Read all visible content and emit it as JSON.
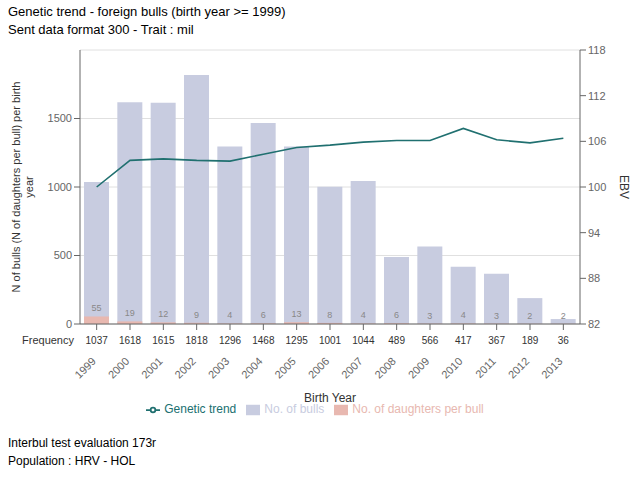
{
  "chart_data": {
    "type": "bar",
    "title": "Genetic trend - foreign bulls (birth year >= 1999)",
    "subtitle": "Sent data format 300 - Trait : mil",
    "annotations": [
      "Interbul test evaluation 173r",
      "Population : HRV - HOL"
    ],
    "categories": [
      "1999",
      "2000",
      "2001",
      "2002",
      "2003",
      "2004",
      "2005",
      "2006",
      "2007",
      "2008",
      "2009",
      "2010",
      "2011",
      "2012",
      "2013"
    ],
    "series": [
      {
        "name": "No. of bulls",
        "type": "bar",
        "color": "#c8cce0",
        "values": [
          1037,
          1618,
          1615,
          1818,
          1296,
          1468,
          1295,
          1001,
          1044,
          489,
          566,
          417,
          367,
          189,
          36
        ]
      },
      {
        "name": "No. of daughters per bull",
        "type": "bar",
        "color": "#e8b8b0",
        "data_labels": true,
        "values": [
          55,
          19,
          12,
          9,
          4,
          6,
          13,
          8,
          4,
          6,
          3,
          4,
          3,
          2,
          2
        ]
      },
      {
        "name": "Genetic trend",
        "type": "line",
        "axis": "y2",
        "color": "#207070",
        "values": [
          100.0,
          103.5,
          103.7,
          103.5,
          103.4,
          104.3,
          105.2,
          105.5,
          105.9,
          106.1,
          106.1,
          107.7,
          106.2,
          105.8,
          106.4
        ]
      }
    ],
    "frequency": {
      "label": "Frequency",
      "values": [
        1037,
        1618,
        1615,
        1818,
        1296,
        1468,
        1295,
        1001,
        1044,
        489,
        566,
        417,
        367,
        189,
        36
      ]
    },
    "xlabel": "Birth Year",
    "ylabel": "N of bulls (N of daughters per bull) per birth\nyear",
    "y2label": "EBV",
    "ylim": [
      0,
      2000
    ],
    "yticks": [
      0,
      500,
      1000,
      1500
    ],
    "y2lim": [
      82,
      118
    ],
    "y2ticks": [
      82,
      88,
      94,
      100,
      106,
      112,
      118
    ],
    "grid": true,
    "legend": "bottom"
  }
}
